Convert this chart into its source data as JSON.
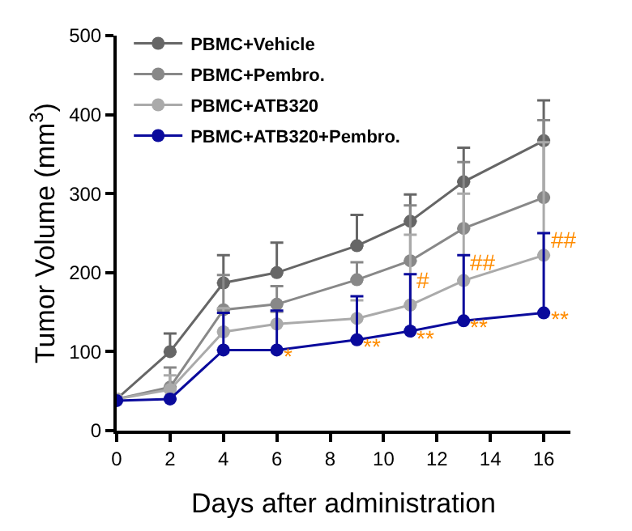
{
  "chart_data": {
    "type": "line",
    "xlabel": "Days after administration",
    "ylabel": "Tumor Volume (mm$^{3}$)",
    "x": [
      0,
      2,
      4,
      6,
      9,
      11,
      13,
      16
    ],
    "series": [
      {
        "name": "PBMC+Vehicle",
        "color": "#666666",
        "values": [
          40,
          100,
          187,
          200,
          234,
          265,
          315,
          367
        ],
        "errors": [
          null,
          [
            100,
            123
          ],
          [
            187,
            222
          ],
          [
            200,
            238
          ],
          [
            234,
            273
          ],
          [
            265,
            299
          ],
          [
            315,
            358
          ],
          [
            367,
            418
          ]
        ]
      },
      {
        "name": "PBMC+Pembro.",
        "color": "#888888",
        "values": [
          40,
          55,
          153,
          160,
          191,
          215,
          256,
          295
        ],
        "errors": [
          null,
          [
            55,
            80
          ],
          [
            153,
            197
          ],
          [
            160,
            183
          ],
          [
            191,
            213
          ],
          [
            215,
            285
          ],
          [
            256,
            340
          ],
          [
            295,
            393
          ]
        ]
      },
      {
        "name": "PBMC+ATB320",
        "color": "#aaaaaa",
        "values": [
          40,
          52,
          125,
          135,
          142,
          159,
          190,
          222
        ],
        "errors": [
          null,
          [
            52,
            70
          ],
          [
            125,
            155
          ],
          [
            135,
            150
          ],
          [
            142,
            165
          ],
          [
            159,
            248
          ],
          [
            190,
            300
          ],
          [
            222,
            365
          ]
        ]
      },
      {
        "name": "PBMC+ATB320+Pembro.",
        "color": "#0a0a9c",
        "values": [
          38,
          40,
          102,
          102,
          115,
          126,
          139,
          149
        ],
        "errors": [
          null,
          null,
          [
            102,
            149
          ],
          [
            102,
            152
          ],
          [
            115,
            170
          ],
          [
            126,
            198
          ],
          [
            139,
            222
          ],
          [
            149,
            250
          ]
        ]
      }
    ],
    "annotations": [
      {
        "text": "*",
        "x": 6,
        "y": 102
      },
      {
        "text": "**",
        "x": 9,
        "y": 115
      },
      {
        "text": "**",
        "x": 11,
        "y": 126
      },
      {
        "text": "#",
        "x": 11,
        "y": 198
      },
      {
        "text": "**",
        "x": 13,
        "y": 139
      },
      {
        "text": "##",
        "x": 13,
        "y": 222
      },
      {
        "text": "**",
        "x": 16,
        "y": 149
      },
      {
        "text": "##",
        "x": 16,
        "y": 250
      }
    ],
    "xlim": [
      0,
      17
    ],
    "xticks": [
      0,
      2,
      4,
      6,
      8,
      10,
      12,
      14,
      16
    ],
    "ylim": [
      0,
      500
    ],
    "yticks": [
      0,
      100,
      200,
      300,
      400,
      500
    ],
    "legend": "top left",
    "marker": "circle",
    "line_style": "solid"
  }
}
